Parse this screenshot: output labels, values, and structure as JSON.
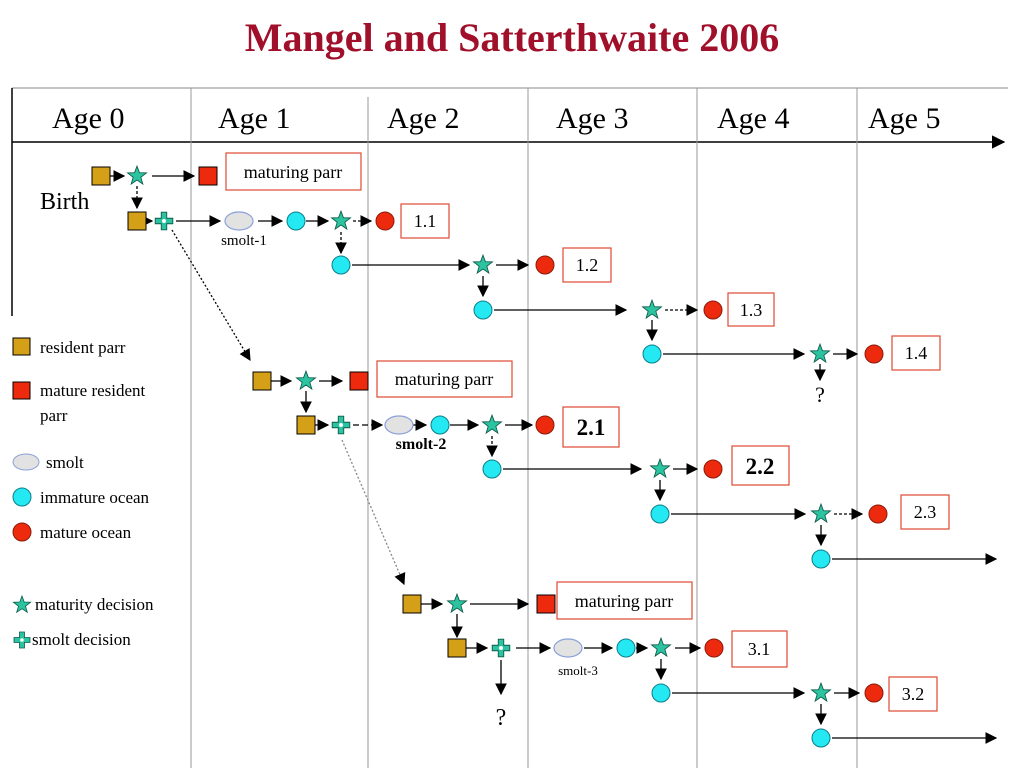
{
  "title": "Mangel and Satterthwaite 2006",
  "ages": [
    "Age 0",
    "Age 1",
    "Age 2",
    "Age 3",
    "Age 4",
    "Age 5"
  ],
  "birth_label": "Birth",
  "legend": [
    {
      "label": "resident parr",
      "icon": "brown-square"
    },
    {
      "label": "mature resident parr",
      "icon": "red-square"
    },
    {
      "label": "smolt",
      "icon": "grey-ellipse"
    },
    {
      "label": "immature ocean",
      "icon": "cyan-circle"
    },
    {
      "label": "mature ocean",
      "icon": "red-circle"
    },
    {
      "label": "maturity decision",
      "icon": "green-star"
    },
    {
      "label": "smolt decision",
      "icon": "green-cross"
    }
  ],
  "boxes": {
    "maturing_parr": "maturing parr",
    "b11": "1.1",
    "b12": "1.2",
    "b13": "1.3",
    "b14": "1.4",
    "b21": "2.1",
    "b22": "2.2",
    "b23": "2.3",
    "b31": "3.1",
    "b32": "3.2"
  },
  "smolt_labels": {
    "s1": "smolt-1",
    "s2": "smolt-2",
    "s3": "smolt-3"
  },
  "question_mark": "?",
  "colors": {
    "title": "#a0102a",
    "brown": "#d4a017",
    "red": "#ee2a0e",
    "cyan": "#24e8f2",
    "green": "#2cc4a0",
    "smolt_fill": "#e2e2e2",
    "smolt_stroke": "#8aa0d8",
    "box_border": "#e04a32"
  }
}
